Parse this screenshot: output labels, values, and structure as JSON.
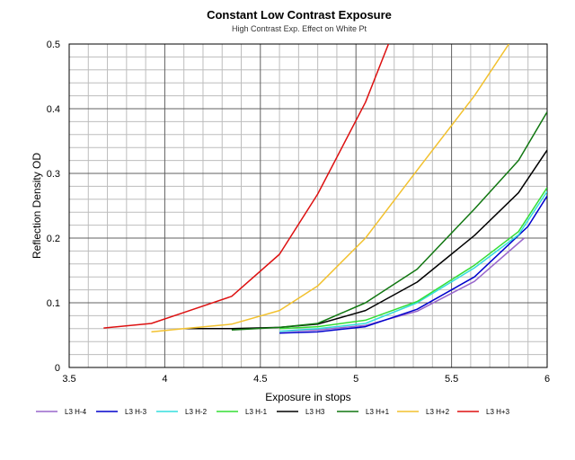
{
  "chart_data": {
    "type": "line",
    "title": "Constant Low Contrast Exposure",
    "subtitle": "High Contrast Exp. Effect on White Pt",
    "xlabel": "Exposure in stops",
    "ylabel": "Reflection Density OD",
    "xlim": [
      3.5,
      6
    ],
    "ylim": [
      0,
      0.5
    ],
    "x_major_step": 0.5,
    "x_minor_step": 0.1,
    "y_major_step": 0.1,
    "y_minor_step": 0.02,
    "x_ticks": [
      "3.5",
      "4",
      "4.5",
      "5",
      "5.5",
      "6"
    ],
    "y_ticks": [
      "0",
      "0.1",
      "0.2",
      "0.3",
      "0.4",
      "0.5"
    ],
    "grid": true,
    "legend_position": "bottom",
    "series": [
      {
        "name": "L3 H-4",
        "color": "#9966cc",
        "points": [
          [
            4.6,
            0.056
          ],
          [
            4.8,
            0.058
          ],
          [
            5.05,
            0.065
          ],
          [
            5.32,
            0.087
          ],
          [
            5.62,
            0.133
          ],
          [
            5.88,
            0.2
          ]
        ]
      },
      {
        "name": "L3 H-3",
        "color": "#0000cc",
        "points": [
          [
            4.6,
            0.053
          ],
          [
            4.8,
            0.055
          ],
          [
            5.05,
            0.063
          ],
          [
            5.32,
            0.09
          ],
          [
            5.62,
            0.14
          ],
          [
            5.9,
            0.218
          ],
          [
            6.0,
            0.265
          ]
        ]
      },
      {
        "name": "L3 H-2",
        "color": "#33dddd",
        "points": [
          [
            4.6,
            0.056
          ],
          [
            4.8,
            0.06
          ],
          [
            5.05,
            0.068
          ],
          [
            5.32,
            0.1
          ],
          [
            5.62,
            0.154
          ],
          [
            5.85,
            0.205
          ],
          [
            6.0,
            0.272
          ]
        ]
      },
      {
        "name": "L3 H-1",
        "color": "#33dd33",
        "points": [
          [
            4.6,
            0.06
          ],
          [
            4.8,
            0.063
          ],
          [
            5.05,
            0.073
          ],
          [
            5.32,
            0.102
          ],
          [
            5.62,
            0.158
          ],
          [
            5.85,
            0.21
          ],
          [
            6.0,
            0.278
          ]
        ]
      },
      {
        "name": "L3 H3",
        "color": "#000000",
        "points": [
          [
            4.1,
            0.06
          ],
          [
            4.35,
            0.06
          ],
          [
            4.6,
            0.062
          ],
          [
            4.8,
            0.067
          ],
          [
            5.05,
            0.088
          ],
          [
            5.32,
            0.132
          ],
          [
            5.62,
            0.204
          ],
          [
            5.85,
            0.27
          ],
          [
            6.0,
            0.336
          ]
        ]
      },
      {
        "name": "L3 H+1",
        "color": "#117711",
        "points": [
          [
            4.35,
            0.058
          ],
          [
            4.6,
            0.062
          ],
          [
            4.8,
            0.068
          ],
          [
            5.05,
            0.1
          ],
          [
            5.32,
            0.152
          ],
          [
            5.62,
            0.245
          ],
          [
            5.85,
            0.32
          ],
          [
            6.0,
            0.395
          ]
        ]
      },
      {
        "name": "L3 H+2",
        "color": "#f2c12e",
        "points": [
          [
            3.93,
            0.055
          ],
          [
            4.1,
            0.06
          ],
          [
            4.35,
            0.067
          ],
          [
            4.6,
            0.088
          ],
          [
            4.8,
            0.126
          ],
          [
            5.05,
            0.2
          ],
          [
            5.32,
            0.305
          ],
          [
            5.62,
            0.42
          ],
          [
            5.8,
            0.5
          ]
        ]
      },
      {
        "name": "L3 H+3",
        "color": "#dd1111",
        "points": [
          [
            3.68,
            0.061
          ],
          [
            3.93,
            0.068
          ],
          [
            4.1,
            0.085
          ],
          [
            4.35,
            0.11
          ],
          [
            4.6,
            0.175
          ],
          [
            4.8,
            0.268
          ],
          [
            5.05,
            0.41
          ],
          [
            5.17,
            0.5
          ]
        ]
      }
    ]
  }
}
